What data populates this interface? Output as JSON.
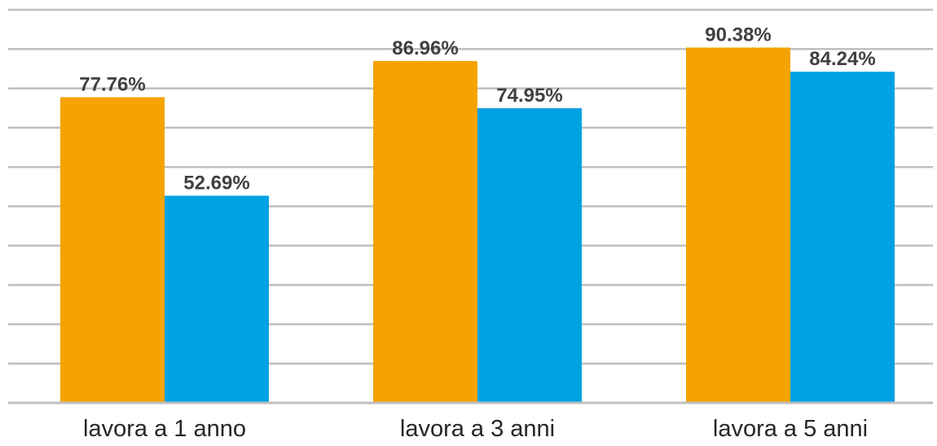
{
  "chart_data": {
    "type": "bar",
    "title": "",
    "xlabel": "",
    "ylabel": "",
    "categories": [
      "lavora a 1 anno",
      "lavora a 3 anni",
      "lavora a 5 anni"
    ],
    "series": [
      {
        "values": [
          77.76,
          86.96,
          90.38
        ],
        "labels": [
          "77.76%",
          "86.96%",
          "90.38%"
        ],
        "color": "#f5a300"
      },
      {
        "values": [
          52.69,
          74.95,
          84.24
        ],
        "labels": [
          "52.69%",
          "74.95%",
          "84.24%"
        ],
        "color": "#00a2e3"
      }
    ],
    "ylim": [
      0,
      100
    ],
    "y_gridline_step": 10,
    "y_tick_labels_shown": false,
    "grid": true,
    "legend": "none"
  }
}
